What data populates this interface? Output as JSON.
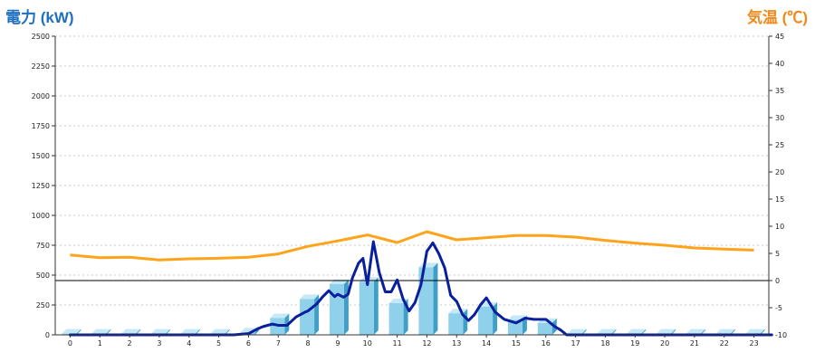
{
  "titles": {
    "left": "電力 (kW)",
    "right": "気温 (℃)"
  },
  "colors": {
    "bar_front": "#8fd0ea",
    "bar_side": "#3f9fc6",
    "bar_top": "#c5e9f6",
    "power_line": "#0a1f9c",
    "temp_line": "#ffa31a",
    "grid": "#c8c8c8",
    "left_title": "#1f6fc0",
    "right_title": "#f08a1c"
  },
  "chart_data": {
    "type": "bar+line",
    "x_ticks": [
      "0",
      "1",
      "2",
      "3",
      "4",
      "5",
      "6",
      "7",
      "8",
      "9",
      "10",
      "11",
      "12",
      "13",
      "14",
      "15",
      "16",
      "17",
      "18",
      "19",
      "20",
      "21",
      "22",
      "23"
    ],
    "y_left": {
      "label": "電力 (kW)",
      "range": [
        0,
        2500
      ],
      "ticks": [
        "0",
        "250",
        "500",
        "750",
        "1000",
        "1250",
        "1500",
        "1750",
        "2000",
        "2250",
        "2500"
      ]
    },
    "y_right": {
      "label": "気温 (℃)",
      "range": [
        -10,
        45
      ],
      "ticks": [
        "-10",
        "-5",
        "0",
        "5",
        "10",
        "15",
        "20",
        "25",
        "30",
        "35",
        "40",
        "45"
      ]
    },
    "bars_hourly_power": [
      10,
      10,
      10,
      10,
      10,
      10,
      20,
      140,
      300,
      425,
      445,
      265,
      565,
      180,
      235,
      125,
      100,
      10,
      10,
      10,
      10,
      10,
      10,
      10
    ],
    "power_line": {
      "x": [
        0,
        5.5,
        6,
        6.3,
        6.5,
        6.8,
        7.0,
        7.3,
        7.6,
        7.9,
        8.0,
        8.3,
        8.5,
        8.7,
        8.9,
        9.0,
        9.2,
        9.35,
        9.5,
        9.7,
        9.85,
        10.0,
        10.2,
        10.4,
        10.6,
        10.8,
        11.0,
        11.2,
        11.4,
        11.6,
        11.8,
        12.0,
        12.2,
        12.4,
        12.6,
        12.8,
        13.0,
        13.2,
        13.4,
        13.6,
        13.8,
        14.0,
        14.3,
        14.6,
        15.0,
        15.3,
        15.6,
        16.0,
        16.3,
        16.5,
        16.7,
        23.6
      ],
      "y": [
        0,
        0,
        10,
        50,
        70,
        90,
        80,
        80,
        150,
        190,
        200,
        260,
        320,
        370,
        320,
        340,
        315,
        340,
        480,
        600,
        640,
        420,
        780,
        520,
        360,
        360,
        460,
        300,
        200,
        270,
        420,
        700,
        770,
        680,
        560,
        330,
        280,
        170,
        120,
        170,
        250,
        310,
        190,
        130,
        100,
        140,
        130,
        130,
        70,
        40,
        0,
        0
      ]
    },
    "temperature_line": {
      "x": [
        0,
        1,
        2,
        3,
        4,
        5,
        6,
        7,
        8,
        9,
        10,
        11,
        12,
        13,
        14,
        15,
        16,
        17,
        18,
        19,
        20,
        21,
        22,
        23
      ],
      "y": [
        4.7,
        4.2,
        4.3,
        3.8,
        4.0,
        4.1,
        4.3,
        4.9,
        6.3,
        7.3,
        8.4,
        7.0,
        9.0,
        7.5,
        7.9,
        8.3,
        8.3,
        8.0,
        7.4,
        6.9,
        6.5,
        6.0,
        5.8,
        5.6
      ]
    },
    "grid": true
  }
}
